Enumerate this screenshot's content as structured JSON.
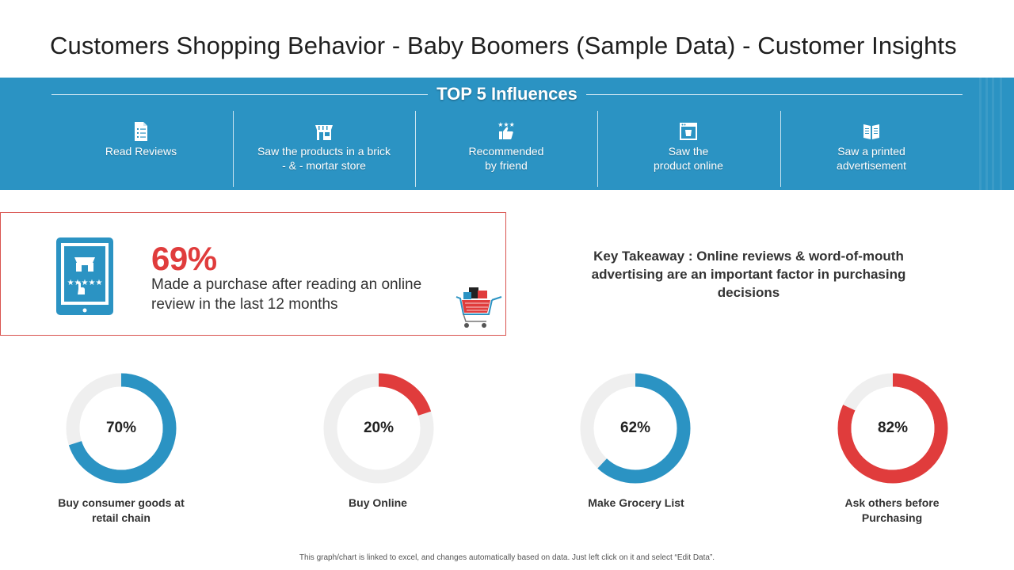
{
  "title": "Customers Shopping Behavior - Baby Boomers (Sample Data) - Customer Insights",
  "influences": {
    "heading": "TOP 5 Influences",
    "items": [
      {
        "icon": "document-list-icon",
        "line1": "Read Reviews",
        "line2": ""
      },
      {
        "icon": "storefront-icon",
        "line1": "Saw the products in a brick",
        "line2": "- & - mortar store"
      },
      {
        "icon": "thumbs-up-stars-icon",
        "line1": "Recommended",
        "line2": "by friend"
      },
      {
        "icon": "browser-window-icon",
        "line1": "Saw the",
        "line2": "product online"
      },
      {
        "icon": "open-magazine-icon",
        "line1": "Saw a printed",
        "line2": "advertisement"
      }
    ]
  },
  "highlight": {
    "percent": "69%",
    "text": "Made a purchase after reading an online review in the last 12 months",
    "stars": "★★★★★"
  },
  "takeaway": "Key Takeaway : Online reviews & word-of-mouth advertising are an important factor in purchasing decisions",
  "chart_data": {
    "type": "donut",
    "items": [
      {
        "label": "70%",
        "value": 70,
        "caption_line1": "Buy consumer goods at",
        "caption_line2": "retail chain",
        "color": "#2b93c3"
      },
      {
        "label": "20%",
        "value": 20,
        "caption_line1": "Buy Online",
        "caption_line2": "",
        "color": "#e03c3c"
      },
      {
        "label": "62%",
        "value": 62,
        "caption_line1": "Make Grocery List",
        "caption_line2": "",
        "color": "#2b93c3"
      },
      {
        "label": "82%",
        "value": 82,
        "caption_line1": "Ask others before",
        "caption_line2": "Purchasing",
        "color": "#e03c3c"
      }
    ],
    "track_color": "#efefef"
  },
  "footer": "This graph/chart is linked to excel, and changes automatically  based on data. Just left click on it and select “Edit Data”."
}
